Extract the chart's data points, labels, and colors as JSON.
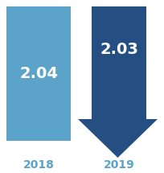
{
  "background_color": "#ffffff",
  "bar_2018_color": "#5ba3c9",
  "arrow_2019_color": "#254f82",
  "text_color_white": "#ffffff",
  "label_color": "#5ba3c9",
  "value_2018": "2.04",
  "value_2019": "2.03",
  "label_2018": "2018",
  "label_2019": "2019",
  "value_fontsize": 14,
  "label_fontsize": 10,
  "fig_width": 2.04,
  "fig_height": 2.15,
  "dpi": 100
}
